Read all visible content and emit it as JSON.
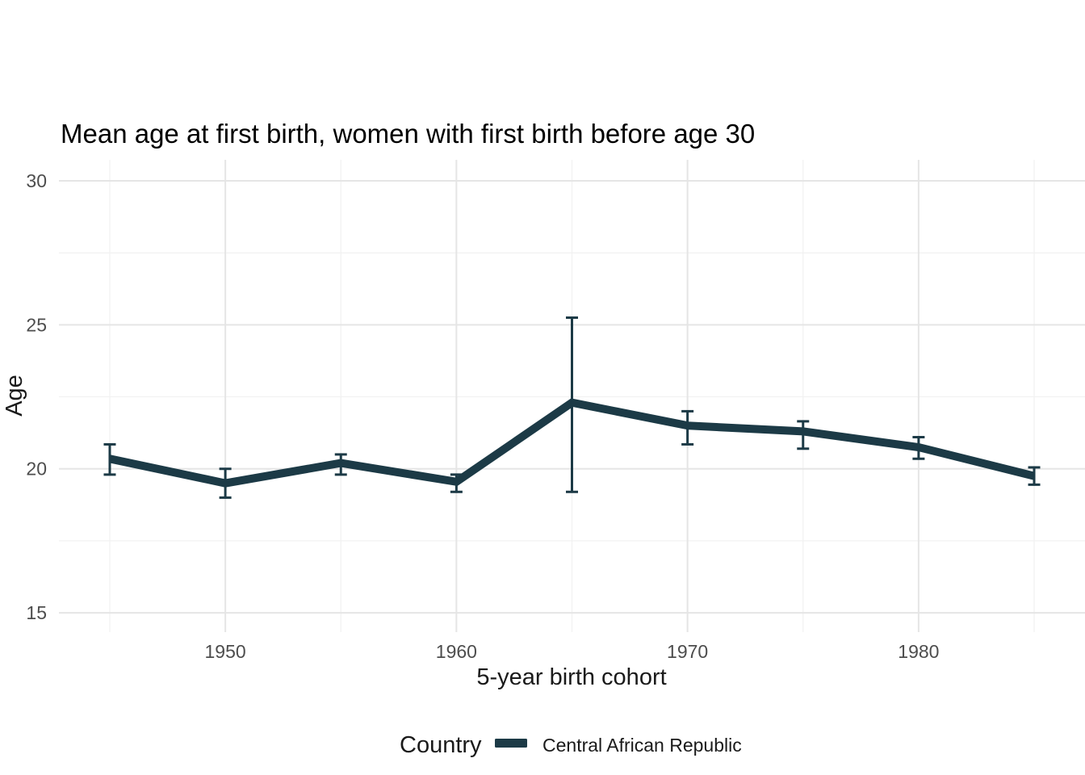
{
  "chart_data": {
    "type": "line",
    "title": "Mean age at first birth, women with first birth before age 30",
    "xlabel": "5-year birth cohort",
    "ylabel": "Age",
    "x": [
      1945,
      1950,
      1955,
      1960,
      1965,
      1970,
      1975,
      1980,
      1985
    ],
    "series": [
      {
        "name": "Central African Republic",
        "values": [
          20.35,
          19.5,
          20.2,
          19.55,
          22.3,
          21.5,
          21.3,
          20.75,
          19.75
        ],
        "ci_low": [
          19.8,
          19.0,
          19.8,
          19.2,
          19.2,
          20.85,
          20.7,
          20.35,
          19.45
        ],
        "ci_high": [
          20.85,
          20.0,
          20.5,
          19.8,
          25.25,
          22.0,
          21.65,
          21.1,
          20.05
        ],
        "color": "#1c3a46"
      }
    ],
    "x_ticks": [
      "1950",
      "1960",
      "1970",
      "1980"
    ],
    "x_tick_values": [
      1950,
      1960,
      1970,
      1980
    ],
    "x_minor_values": [
      1945,
      1955,
      1965,
      1975,
      1985
    ],
    "y_ticks": [
      "15",
      "20",
      "25",
      "30"
    ],
    "y_tick_values": [
      15,
      20,
      25,
      30
    ],
    "y_minor_values": [
      17.5,
      22.5,
      27.5
    ],
    "xlim": [
      1942.8,
      1987.2
    ],
    "ylim": [
      14.33,
      30.73
    ],
    "grid": true,
    "legend": {
      "position": "bottom",
      "title": "Country",
      "items": [
        {
          "label": "Central African Republic",
          "color": "#1c3a46"
        }
      ]
    },
    "colors": {
      "line": "#1c3a46",
      "grid_major": "#e5e5e5",
      "grid_minor": "#f1f1f1",
      "tick_text": "#4d4d4d",
      "title_text": "#000000",
      "axis_title_text": "#1a1a1a",
      "background": "#ffffff"
    }
  }
}
